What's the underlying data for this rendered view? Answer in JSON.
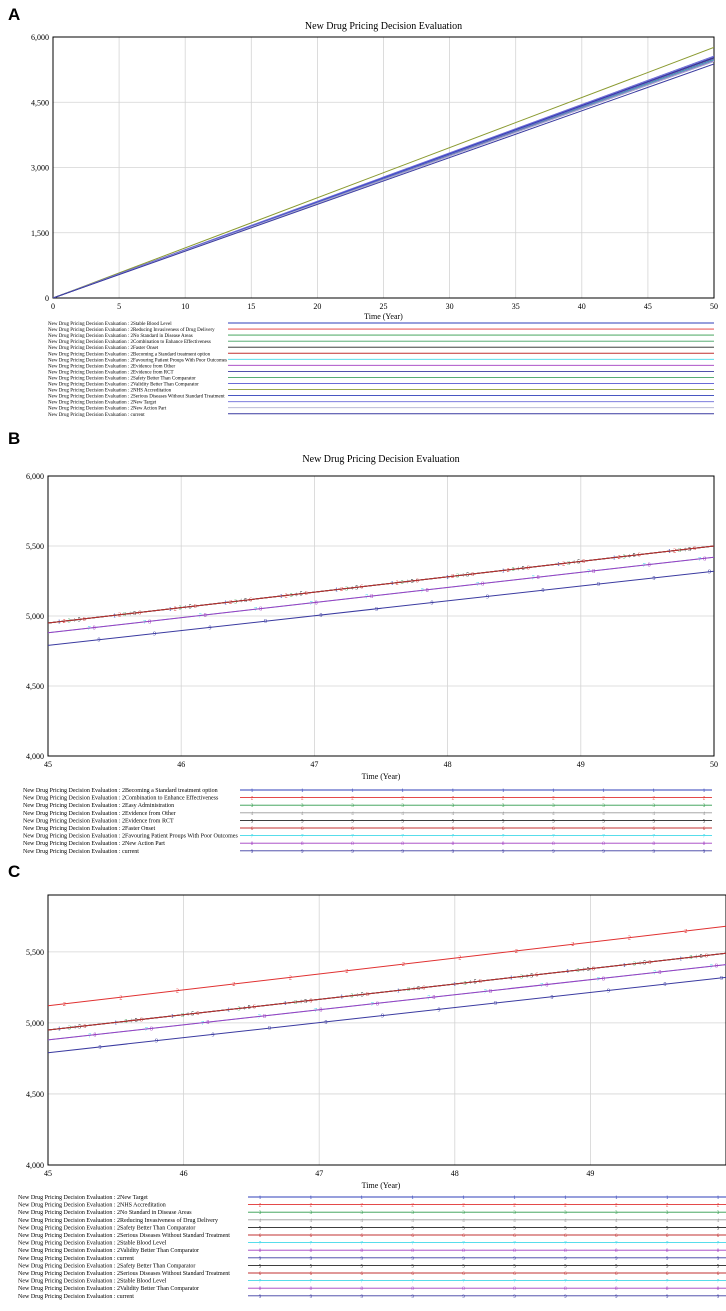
{
  "figure": {
    "panels": [
      "A",
      "B",
      "C"
    ]
  },
  "colors": {
    "s1": "#2f3fb8",
    "s2": "#e03030",
    "s3": "#2f9a4a",
    "s4": "#9a9a9a",
    "s5": "#222222",
    "s6": "#c03030",
    "s7": "#40d8e8",
    "s8": "#a03cc0",
    "s9": "#3a3aa0",
    "s10": "#8a9a30",
    "s11": "#6a6ad8",
    "s12": "#40a060",
    "s13": "#b0b0d0",
    "s14": "#d09030",
    "s15": "#7a7a7a"
  },
  "chart_data": [
    {
      "panel": "A",
      "type": "line",
      "title": "New Drug Pricing Decision Evaluation",
      "xlabel": "Time (Year)",
      "ylabel": "",
      "xlim": [
        0,
        50
      ],
      "ylim": [
        0,
        6000
      ],
      "xticks": [
        "0",
        "5",
        "10",
        "15",
        "20",
        "25",
        "30",
        "35",
        "40",
        "45",
        "50"
      ],
      "yticks": [
        "0",
        "1,500",
        "3,000",
        "4,500",
        "6,000"
      ],
      "ytick_values": [
        0,
        1500,
        3000,
        4500,
        6000
      ],
      "grid": true,
      "legend_position": "bottom",
      "series": [
        {
          "name": "New Drug Pricing Decision Evaluation : 2Stable Blood Level",
          "x": [
            0,
            50
          ],
          "values": [
            0,
            5500
          ],
          "color": "s1"
        },
        {
          "name": "New Drug Pricing Decision Evaluation : 2Reducing Invasiveness of Drug Delivery",
          "x": [
            0,
            50
          ],
          "values": [
            0,
            5480
          ],
          "color": "s2"
        },
        {
          "name": "New Drug Pricing Decision Evaluation : 2No Standard in Disease Areas",
          "x": [
            0,
            50
          ],
          "values": [
            0,
            5460
          ],
          "color": "s3"
        },
        {
          "name": "New Drug Pricing Decision Evaluation : 2Combination to Enhance Effectiveness",
          "x": [
            0,
            50
          ],
          "values": [
            0,
            5510
          ],
          "color": "s12"
        },
        {
          "name": "New Drug Pricing Decision Evaluation : 2Faster Onset",
          "x": [
            0,
            50
          ],
          "values": [
            0,
            5520
          ],
          "color": "s5"
        },
        {
          "name": "New Drug Pricing Decision Evaluation : 2Becoming a Standard treatment option",
          "x": [
            0,
            50
          ],
          "values": [
            0,
            5530
          ],
          "color": "s6"
        },
        {
          "name": "New Drug Pricing Decision Evaluation : 2Favouring Patient Proups With Poor Outcomes",
          "x": [
            0,
            50
          ],
          "values": [
            0,
            5470
          ],
          "color": "s7"
        },
        {
          "name": "New Drug Pricing Decision Evaluation : 2Evidence from Other",
          "x": [
            0,
            50
          ],
          "values": [
            0,
            5450
          ],
          "color": "s8"
        },
        {
          "name": "New Drug Pricing Decision Evaluation : 2Evidence from RCT",
          "x": [
            0,
            50
          ],
          "values": [
            0,
            5440
          ],
          "color": "s9"
        },
        {
          "name": "New Drug Pricing Decision Evaluation : 2Safety Better Than Comparator",
          "x": [
            0,
            50
          ],
          "values": [
            0,
            5490
          ],
          "color": "s12"
        },
        {
          "name": "New Drug Pricing Decision Evaluation : 2Validity Better Than Comparator",
          "x": [
            0,
            50
          ],
          "values": [
            0,
            5500
          ],
          "color": "s11"
        },
        {
          "name": "New Drug Pricing Decision Evaluation : 2NHS Accreditation",
          "x": [
            0,
            50
          ],
          "values": [
            0,
            5760
          ],
          "color": "s10"
        },
        {
          "name": "New Drug Pricing Decision Evaluation : 2Serious Diseases Without Standard Treatment",
          "x": [
            0,
            50
          ],
          "values": [
            0,
            5530
          ],
          "color": "s1"
        },
        {
          "name": "New Drug Pricing Decision Evaluation : 2New Target",
          "x": [
            0,
            50
          ],
          "values": [
            0,
            5560
          ],
          "color": "s11"
        },
        {
          "name": "New Drug Pricing Decision Evaluation : 2New Action Part",
          "x": [
            0,
            50
          ],
          "values": [
            0,
            5440
          ],
          "color": "s13"
        },
        {
          "name": "New Drug Pricing Decision Evaluation : current",
          "x": [
            0,
            50
          ],
          "values": [
            0,
            5380
          ],
          "color": "s9"
        }
      ]
    },
    {
      "panel": "B",
      "type": "line",
      "title": "New Drug Pricing Decision Evaluation",
      "xlabel": "Time (Year)",
      "ylabel": "",
      "xlim": [
        45,
        50
      ],
      "ylim": [
        4000,
        6000
      ],
      "xticks": [
        "45",
        "46",
        "47",
        "48",
        "49",
        "50"
      ],
      "yticks": [
        "4,000",
        "4,500",
        "5,000",
        "5,500",
        "6,000"
      ],
      "ytick_values": [
        4000,
        4500,
        5000,
        5500,
        6000
      ],
      "grid": true,
      "legend_position": "bottom",
      "series": [
        {
          "name": "New Drug Pricing Decision Evaluation : 2Becoming a Standard treatment option",
          "marker": "1",
          "x": [
            45,
            50
          ],
          "values": [
            4950,
            5500
          ],
          "color": "s1"
        },
        {
          "name": "New Drug Pricing Decision Evaluation : 2Combination to Enhance Effectiveness",
          "marker": "2",
          "x": [
            45,
            50
          ],
          "values": [
            4950,
            5500
          ],
          "color": "s2"
        },
        {
          "name": "New Drug Pricing Decision Evaluation : 2Easy Administration",
          "marker": "3",
          "x": [
            45,
            50
          ],
          "values": [
            4950,
            5500
          ],
          "color": "s3"
        },
        {
          "name": "New Drug Pricing Decision Evaluation : 2Evidence from Other",
          "marker": "4",
          "x": [
            45,
            50
          ],
          "values": [
            4950,
            5500
          ],
          "color": "s4"
        },
        {
          "name": "New Drug Pricing Decision Evaluation : 2Evidence from RCT",
          "marker": "5",
          "x": [
            45,
            50
          ],
          "values": [
            4950,
            5500
          ],
          "color": "s5"
        },
        {
          "name": "New Drug Pricing Decision Evaluation : 2Faster Onset",
          "marker": "6",
          "x": [
            45,
            50
          ],
          "values": [
            4950,
            5500
          ],
          "color": "s6"
        },
        {
          "name": "New Drug Pricing Decision Evaluation : 2Favouring Patient Proups With Poor Outcomes",
          "marker": "7",
          "x": [
            45,
            50
          ],
          "values": [
            4880,
            5420
          ],
          "color": "s7"
        },
        {
          "name": "New Drug Pricing Decision Evaluation : 2New Action Part",
          "marker": "8",
          "x": [
            45,
            50
          ],
          "values": [
            4880,
            5420
          ],
          "color": "s8"
        },
        {
          "name": "New Drug Pricing Decision Evaluation : current",
          "marker": "9",
          "x": [
            45,
            50
          ],
          "values": [
            4790,
            5320
          ],
          "color": "s9"
        }
      ]
    },
    {
      "panel": "C",
      "type": "line",
      "title": "",
      "xlabel": "Time (Year)",
      "ylabel": "",
      "xlim": [
        45,
        50
      ],
      "ylim": [
        4000,
        5900
      ],
      "xticks": [
        "45",
        "46",
        "47",
        "48",
        "49"
      ],
      "yticks": [
        "4,000",
        "4,500",
        "5,000",
        "5,500"
      ],
      "ytick_values": [
        4000,
        4500,
        5000,
        5500
      ],
      "grid": true,
      "legend_position": "bottom",
      "series": [
        {
          "name": "New Drug Pricing Decision Evaluation : 2New Target",
          "marker": "1",
          "x": [
            45,
            50
          ],
          "values": [
            4950,
            5490
          ],
          "color": "s1"
        },
        {
          "name": "New Drug Pricing Decision Evaluation : 2NHS Accreditation",
          "marker": "2",
          "x": [
            45,
            50
          ],
          "values": [
            5120,
            5680
          ],
          "color": "s2"
        },
        {
          "name": "New Drug Pricing Decision Evaluation : 2No Standard in Disease Areas",
          "marker": "3",
          "x": [
            45,
            50
          ],
          "values": [
            4950,
            5490
          ],
          "color": "s3"
        },
        {
          "name": "New Drug Pricing Decision Evaluation : 2Reducing Invasiveness of Drug Delivery",
          "marker": "4",
          "x": [
            45,
            50
          ],
          "values": [
            4950,
            5490
          ],
          "color": "s4"
        },
        {
          "name": "New Drug Pricing Decision Evaluation : 2Safety Better Than Comparator",
          "marker": "5",
          "x": [
            45,
            50
          ],
          "values": [
            4950,
            5490
          ],
          "color": "s5"
        },
        {
          "name": "New Drug Pricing Decision Evaluation : 2Serious Diseases Without Standard Treatment",
          "marker": "6",
          "x": [
            45,
            50
          ],
          "values": [
            4950,
            5490
          ],
          "color": "s6"
        },
        {
          "name": "New Drug Pricing Decision Evaluation : 2Stable Blood Level",
          "marker": "7",
          "x": [
            45,
            50
          ],
          "values": [
            4880,
            5410
          ],
          "color": "s7"
        },
        {
          "name": "New Drug Pricing Decision Evaluation : 2Validity Better Than Comparator",
          "marker": "8",
          "x": [
            45,
            50
          ],
          "values": [
            4880,
            5410
          ],
          "color": "s8"
        },
        {
          "name": "New Drug Pricing Decision Evaluation : current",
          "marker": "9",
          "x": [
            45,
            50
          ],
          "values": [
            4790,
            5320
          ],
          "color": "s9"
        }
      ],
      "extra_legend": [
        {
          "name": "New Drug Pricing Decision Evaluation : 2Safety Better Than Comparator",
          "marker": "5",
          "color": "s5"
        },
        {
          "name": "New Drug Pricing Decision Evaluation : 2Serious Diseases Without Standard Treatment",
          "marker": "6",
          "color": "s6"
        },
        {
          "name": "New Drug Pricing Decision Evaluation : 2Stable Blood Level",
          "marker": "7",
          "color": "s7"
        },
        {
          "name": "New Drug Pricing Decision Evaluation : 2Validity Better Than Comparator",
          "marker": "8",
          "color": "s8"
        },
        {
          "name": "New Drug Pricing Decision Evaluation : current",
          "marker": "9",
          "color": "s9"
        }
      ]
    }
  ]
}
